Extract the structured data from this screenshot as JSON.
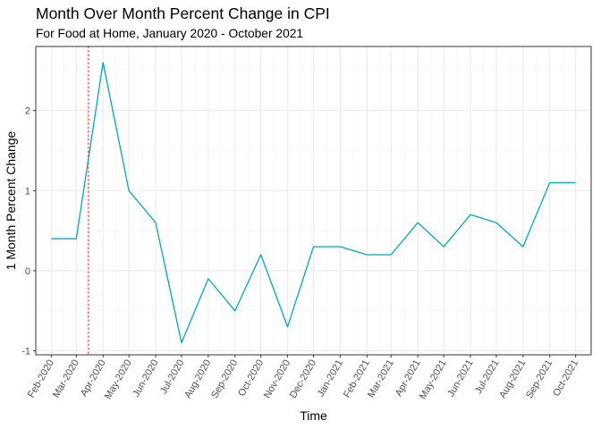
{
  "chart_data": {
    "type": "line",
    "title": "Month Over Month Percent Change in CPI",
    "subtitle": "For Food at Home, January 2020 - October 2021",
    "xlabel": "Time",
    "ylabel": "1 Month Percent Change",
    "x_tick_labels": [
      "Feb-2020",
      "Mar-2020",
      "Apr-2020",
      "May-2020",
      "Jun-2020",
      "Jul-2020",
      "Aug-2020",
      "Sep-2020",
      "Oct-2020",
      "Nov-2020",
      "Dec-2020",
      "Jan-2021",
      "Feb-2021",
      "Mar-2021",
      "Apr-2021",
      "May-2021",
      "Jun-2021",
      "Jul-2021",
      "Aug-2021",
      "Sep-2021",
      "Oct-2021"
    ],
    "x": [
      "2020-02-01",
      "2020-03-01",
      "2020-04-01",
      "2020-05-01",
      "2020-06-01",
      "2020-07-01",
      "2020-08-01",
      "2020-09-01",
      "2020-10-01",
      "2020-11-01",
      "2020-12-01",
      "2021-01-01",
      "2021-02-01",
      "2021-03-01",
      "2021-04-01",
      "2021-05-01",
      "2021-06-01",
      "2021-07-01",
      "2021-08-01",
      "2021-09-01",
      "2021-10-01"
    ],
    "series": [
      {
        "values": [
          0.4,
          0.4,
          2.6,
          1.0,
          0.6,
          -0.9,
          -0.1,
          -0.5,
          0.2,
          -0.7,
          0.3,
          0.3,
          0.2,
          0.2,
          0.6,
          0.3,
          0.7,
          0.6,
          0.3,
          1.1,
          1.1
        ],
        "color": "#00A9B5"
      }
    ],
    "y_ticks": [
      -1,
      0,
      1,
      2
    ],
    "ylim": [
      -1.05,
      2.8
    ],
    "xlim": [
      "2020-01-14",
      "2021-10-19"
    ],
    "reference_line": {
      "x": "2020-03-15",
      "color": "#E8483C",
      "style": "dotted"
    },
    "grid": true,
    "legend": "none",
    "theme": "bw"
  }
}
